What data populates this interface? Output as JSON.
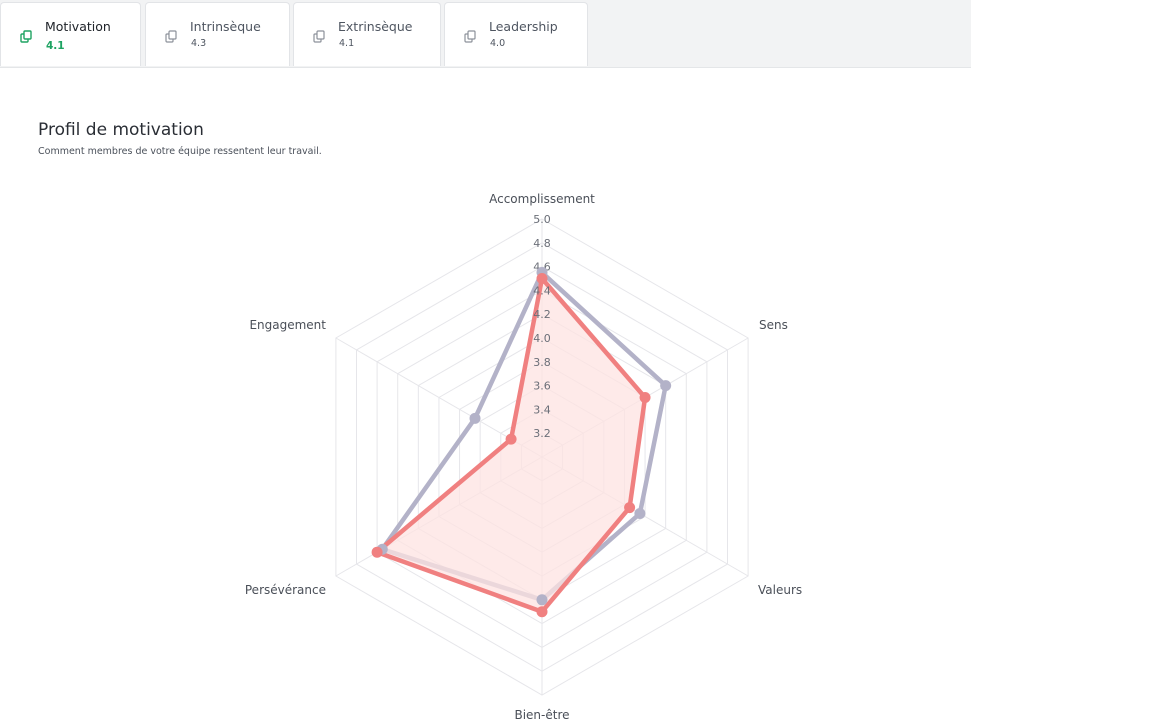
{
  "tabs": [
    {
      "label": "Motivation",
      "value": "4.1",
      "active": true
    },
    {
      "label": "Intrinsèque",
      "value": "4.3",
      "active": false
    },
    {
      "label": "Extrinsèque",
      "value": "4.1",
      "active": false
    },
    {
      "label": "Leadership",
      "value": "4.0",
      "active": false
    }
  ],
  "section": {
    "title": "Profil de motivation",
    "subtitle": "Comment membres de votre équipe ressentent leur travail."
  },
  "colors": {
    "active_tab_accent": "#1ea362",
    "series_team": "#f08080",
    "series_team_fill": "#fde3e2",
    "series_reference": "#b3b2c8"
  },
  "chart_data": {
    "type": "radar",
    "axes": [
      "Accomplissement",
      "Sens",
      "Valeurs",
      "Bien-être",
      "Persévérance",
      "Engagement"
    ],
    "ticks": [
      "3.2",
      "3.4",
      "3.6",
      "3.8",
      "4.0",
      "4.2",
      "4.4",
      "4.6",
      "4.8",
      "5.0"
    ],
    "range": [
      3.0,
      5.0
    ],
    "series": [
      {
        "values": [
          4.55,
          4.2,
          3.95,
          4.2,
          4.55,
          3.65
        ],
        "color": "#b3b2c8"
      },
      {
        "values": [
          4.5,
          4.0,
          3.85,
          4.3,
          4.6,
          3.3
        ],
        "color": "#f08080"
      }
    ],
    "grid": true,
    "legend": "none"
  }
}
